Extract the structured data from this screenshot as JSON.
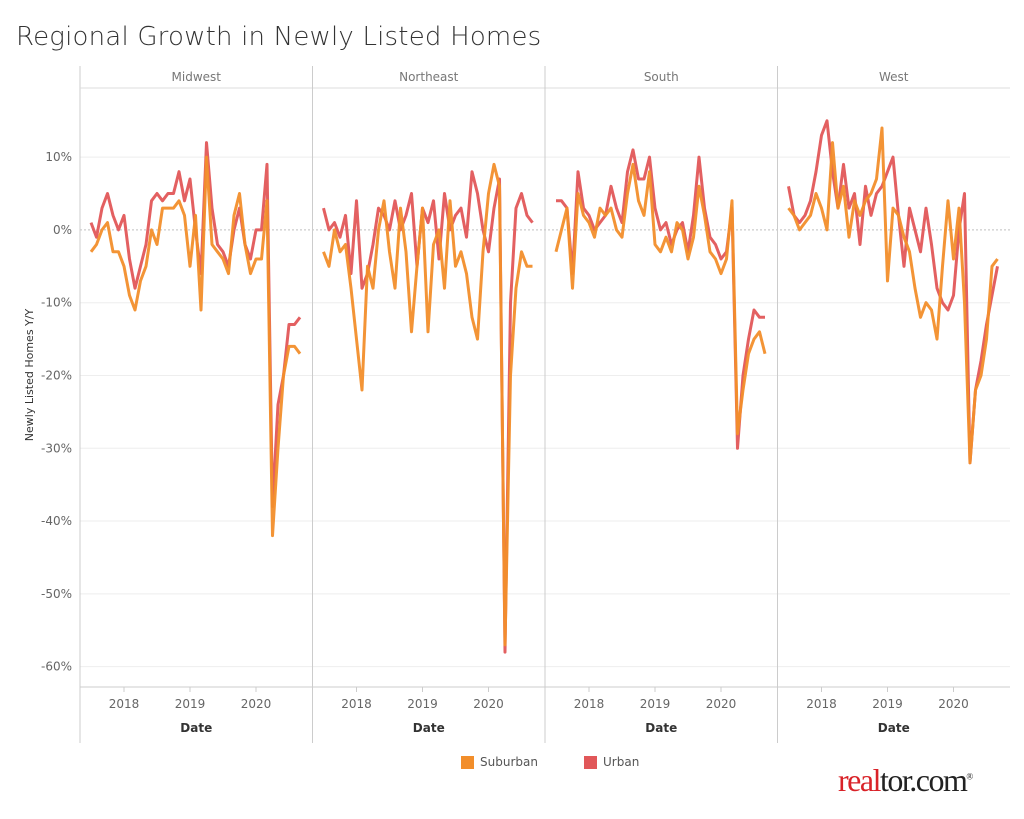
{
  "title": "Regional Growth in Newly Listed Homes",
  "chart_data": {
    "type": "line",
    "title": "Regional Growth in Newly Listed Homes",
    "xlabel": "Date",
    "ylabel": "Newly Listed Homes Y/Y",
    "ylim": [
      -62.8,
      19.5
    ],
    "yticks": [
      10,
      0,
      -10,
      -20,
      -30,
      -40,
      -50,
      -60
    ],
    "ytick_labels": [
      "10%",
      "0%",
      "-10%",
      "-20%",
      "-30%",
      "-40%",
      "-50%",
      "-60%"
    ],
    "xticks": [
      "2018",
      "2019",
      "2020"
    ],
    "grid": true,
    "legend_placement": "bottom",
    "colors": {
      "Suburban": "#f28e2b",
      "Urban": "#e15759"
    },
    "x": [
      "2017-07",
      "2017-08",
      "2017-09",
      "2017-10",
      "2017-11",
      "2017-12",
      "2018-01",
      "2018-02",
      "2018-03",
      "2018-04",
      "2018-05",
      "2018-06",
      "2018-07",
      "2018-08",
      "2018-09",
      "2018-10",
      "2018-11",
      "2018-12",
      "2019-01",
      "2019-02",
      "2019-03",
      "2019-04",
      "2019-05",
      "2019-06",
      "2019-07",
      "2019-08",
      "2019-09",
      "2019-10",
      "2019-11",
      "2019-12",
      "2020-01",
      "2020-02",
      "2020-03",
      "2020-04",
      "2020-05",
      "2020-06",
      "2020-07",
      "2020-08",
      "2020-09"
    ],
    "panels": [
      {
        "name": "Midwest",
        "series": [
          {
            "name": "Urban",
            "values": [
              1,
              -1,
              3,
              5,
              2,
              0,
              2,
              -4,
              -8,
              -5,
              -2,
              4,
              5,
              4,
              5,
              5,
              8,
              4,
              7,
              0,
              -6,
              12,
              3,
              -2,
              -3,
              -5,
              0,
              3,
              -2,
              -4,
              0,
              0,
              9,
              -38,
              -24,
              -20,
              -13,
              -13,
              -12
            ]
          },
          {
            "name": "Suburban",
            "values": [
              -3,
              -2,
              0,
              1,
              -3,
              -3,
              -5,
              -9,
              -11,
              -7,
              -5,
              0,
              -2,
              3,
              3,
              3,
              4,
              2,
              -5,
              2,
              -11,
              10,
              -2,
              -3,
              -4,
              -6,
              2,
              5,
              -2,
              -6,
              -4,
              -4,
              4,
              -42,
              -30,
              -20,
              -16,
              -16,
              -17
            ]
          }
        ]
      },
      {
        "name": "Northeast",
        "series": [
          {
            "name": "Urban",
            "values": [
              3,
              0,
              1,
              -1,
              2,
              -6,
              4,
              -8,
              -6,
              -2,
              3,
              2,
              0,
              4,
              0,
              2,
              5,
              -5,
              3,
              1,
              4,
              -4,
              5,
              0,
              2,
              3,
              -1,
              8,
              5,
              0,
              -3,
              3,
              7,
              -58,
              -10,
              3,
              5,
              2,
              1
            ]
          },
          {
            "name": "Suburban",
            "values": [
              -3,
              -5,
              0,
              -3,
              -2,
              -8,
              -15,
              -22,
              -5,
              -8,
              0,
              4,
              -3,
              -8,
              3,
              -3,
              -14,
              -5,
              3,
              -14,
              -2,
              0,
              -8,
              4,
              -5,
              -3,
              -6,
              -12,
              -15,
              -3,
              5,
              9,
              6,
              -57,
              -20,
              -8,
              -3,
              -5,
              -5
            ]
          }
        ]
      },
      {
        "name": "South",
        "series": [
          {
            "name": "Urban",
            "values": [
              4,
              4,
              3,
              -6,
              8,
              3,
              2,
              0,
              1,
              2,
              6,
              3,
              1,
              8,
              11,
              7,
              7,
              10,
              3,
              0,
              1,
              -2,
              0,
              1,
              -3,
              2,
              10,
              3,
              -1,
              -2,
              -4,
              -3,
              3,
              -30,
              -20,
              -15,
              -11,
              -12,
              -12
            ]
          },
          {
            "name": "Suburban",
            "values": [
              -3,
              0,
              3,
              -8,
              5,
              2,
              1,
              -1,
              3,
              2,
              3,
              0,
              -1,
              5,
              9,
              4,
              2,
              8,
              -2,
              -3,
              -1,
              -3,
              1,
              0,
              -4,
              -1,
              6,
              2,
              -3,
              -4,
              -6,
              -4,
              4,
              -28,
              -22,
              -17,
              -15,
              -14,
              -17
            ]
          }
        ]
      },
      {
        "name": "West",
        "series": [
          {
            "name": "Urban",
            "values": [
              6,
              2,
              1,
              2,
              4,
              8,
              13,
              15,
              8,
              3,
              9,
              3,
              5,
              -2,
              6,
              2,
              5,
              6,
              8,
              10,
              2,
              -5,
              3,
              0,
              -3,
              3,
              -2,
              -8,
              -10,
              -11,
              -9,
              0,
              5,
              -32,
              -22,
              -18,
              -13,
              -9,
              -5
            ]
          },
          {
            "name": "Suburban",
            "values": [
              3,
              2,
              0,
              1,
              2,
              5,
              3,
              0,
              12,
              3,
              6,
              -1,
              4,
              2,
              4,
              5,
              7,
              14,
              -7,
              3,
              2,
              -1,
              -3,
              -8,
              -12,
              -10,
              -11,
              -15,
              -5,
              4,
              -4,
              3,
              -10,
              -32,
              -22,
              -20,
              -15,
              -5,
              -4
            ]
          }
        ]
      }
    ]
  },
  "legend": [
    {
      "label": "Suburban",
      "color": "#f28e2b"
    },
    {
      "label": "Urban",
      "color": "#e15759"
    }
  ],
  "logo": {
    "text": "realtor.com",
    "part1": "real",
    "part2": "tor.com",
    "mark": "®"
  }
}
